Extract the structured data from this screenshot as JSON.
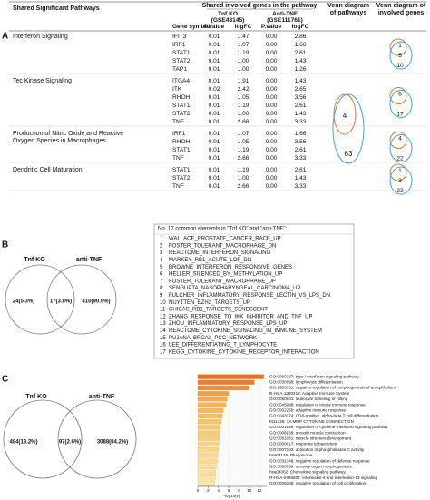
{
  "panel_labels": [
    "A",
    "B",
    "C"
  ],
  "table": {
    "title": "Shared Significant Pathways",
    "genes_header": "Shared involved genes in the pathway",
    "dataset_1": [
      "Tnf KO",
      "(GSE43145)"
    ],
    "dataset_2": [
      "Anti-TNF",
      "(GSE111761)"
    ],
    "venn_pathways_header": [
      "Venn diagram",
      "of pathways"
    ],
    "venn_genes_header": [
      "Venn diagram of",
      "involved genes"
    ],
    "columns": [
      "Gene symbol",
      "P.value",
      "logFC",
      "P.value",
      "logFC"
    ],
    "groups": [
      {
        "pathway": [
          "Interferon Signaling"
        ],
        "gene_venn": [
          "1",
          "5",
          "10"
        ],
        "rows": [
          [
            "IFIT3",
            "0.01",
            "1.47",
            "0.00",
            "2.86"
          ],
          [
            "IRF1",
            "0.01",
            "1.07",
            "0.00",
            "1.66"
          ],
          [
            "STAT1",
            "0.01",
            "1.19",
            "0.00",
            "2.61"
          ],
          [
            "STAT2",
            "0.01",
            "1.00",
            "0.00",
            "1.43"
          ],
          [
            "TAP1",
            "0.01",
            "1.00",
            "0.00",
            "1.26"
          ]
        ]
      },
      {
        "pathway": [
          "Tec Kinase Signaling"
        ],
        "gene_venn": [
          "6",
          "17"
        ],
        "rows": [
          [
            "ITGA4",
            "0.01",
            "1.91",
            "0.00",
            "1.43"
          ],
          [
            "ITK",
            "0.02",
            "2.42",
            "0.00",
            "2.65"
          ],
          [
            "RHOH",
            "0.01",
            "1.05",
            "0.00",
            "3.56"
          ],
          [
            "STAT1",
            "0.01",
            "1.19",
            "0.00",
            "2.61"
          ],
          [
            "STAT2",
            "0.01",
            "1.00",
            "0.00",
            "1.43"
          ],
          [
            "TNF",
            "0.01",
            "2.66",
            "0.00",
            "3.33"
          ]
        ]
      },
      {
        "pathway": [
          "Production of Nitric Oxide and Reactive",
          "Oxygen Species in Macrophages"
        ],
        "gene_venn": [
          "4",
          "22"
        ],
        "rows": [
          [
            "IRF1",
            "0.01",
            "1.07",
            "0.00",
            "1.66"
          ],
          [
            "RHOH",
            "0.01",
            "1.05",
            "0.00",
            "3.56"
          ],
          [
            "STAT1",
            "0.01",
            "1.19",
            "0.00",
            "2.61"
          ],
          [
            "TNF",
            "0.01",
            "2.66",
            "0.00",
            "3.33"
          ]
        ]
      },
      {
        "pathway": [
          "Dendritic Cell Maturation"
        ],
        "gene_venn": [
          "1",
          "3",
          "33"
        ],
        "rows": [
          [
            "STAT1",
            "0.01",
            "1.19",
            "0.00",
            "2.61"
          ],
          [
            "STAT2",
            "0.01",
            "1.00",
            "0.00",
            "1.43"
          ],
          [
            "TNF",
            "0.01",
            "2.66",
            "0.00",
            "3.33"
          ]
        ]
      }
    ],
    "pathway_venn": [
      "4",
      "63"
    ]
  },
  "venn_b": {
    "sets": [
      "Tnf KO",
      "anti-TNF"
    ],
    "regions": [
      "24(5.3%)",
      "17(3.8%)",
      "410(90.9%)"
    ]
  },
  "common_list": {
    "title": "No. 17 common elements  in \"Tnf KO\" and \"anti-TNF\":",
    "items": [
      [
        "1",
        "WALLACE_PROSTATE_CANCER_RACE_UP"
      ],
      [
        "2",
        "FOSTER_TOLERANT_MACROPHAGE_DN"
      ],
      [
        "3",
        "REACTOME_INTERFERON_SIGNALING"
      ],
      [
        "4",
        "MARKEY_RB1_ACUTE_LOF_DN"
      ],
      [
        "5",
        "BROWNE_INTERFERON_RESPONSIVE_GENES"
      ],
      [
        "6",
        "HELLER_SILENCED_BY_METHYLATION_UP"
      ],
      [
        "7",
        "FOSTER_TOLERANT_MACROPHAGE_UP"
      ],
      [
        "8",
        "SENGUPTA_NASOPHARYNGEAL_CARCINOMA_UP"
      ],
      [
        "9",
        "FULCHER_INFLAMMATORY_RESPONSE_LECTIN_VS_LPS_DN"
      ],
      [
        "10",
        "NUYTTEN_EZH2_TARGETS_UP"
      ],
      [
        "11",
        "CHICAS_RB1_TARGETS_SENESCENT"
      ],
      [
        "12",
        "ZHANG_RESPONSE_TO_IKK_INHIBITOR_AND_TNF_UP"
      ],
      [
        "13",
        "ZHOU_INFLAMMATORY_RESPONSE_LPS_UP"
      ],
      [
        "14",
        "REACTOME_CYTOKINE_SIGNALING_IN_IMMUNE_SYSTEM"
      ],
      [
        "15",
        "PUJANA_BRCA2_PCC_NETWORK"
      ],
      [
        "16",
        "LEE_DIFFERENTIATING_T_LYMPHOCYTE"
      ],
      [
        "17",
        "KEGG_CYTOKINE_CYTOKINE_RECEPTOR_INTERACTION"
      ]
    ]
  },
  "venn_c": {
    "sets": [
      "Tnf KO",
      "anti-TNF"
    ],
    "regions": [
      "484(13.2%)",
      "97(2.6%)",
      "3088(84.2%)"
    ]
  },
  "chart_data": {
    "type": "bar",
    "orientation": "horizontal",
    "xlabel": "-log10(P)",
    "categories": [
      "GO:0060337: type I interferon signaling pathway",
      "GO:0030098: lymphocyte differentiation",
      "GO:1905331: negative regulation of morphogenesis of an epithelium",
      "R-HSA-1280218: Adaptive Immune System",
      "GO:0050901: leukocyte tethering or rolling",
      "GO:0045088: regulation of innate immune response",
      "GO:0002250: adaptive immune response",
      "GO:0043374: CD8-positive, alpha-beta T cell differentiation",
      "M11736: 3A MMP CYTOKINE CONNECTION",
      "GO:0001959: regulation of cytokine-mediated signaling pathway",
      "GO:0006939: smooth muscle contraction",
      "GO:0061061: muscle structure development",
      "GO:0009617: response to bacterium",
      "GO:0007202: activation of phospholipase C activity",
      "hsa04145: Phagosome",
      "GO:0031348: negative regulation of defense response",
      "GO:0090596: sensory organ morphogenesis",
      "hsa04062: Chemokine signaling pathway",
      "R-HSA-6785807: Interleukin-4 and Interleukin-13 signaling",
      "GO:0008285: negative regulation of cell proliferation"
    ],
    "values": [
      12.8,
      11.0,
      10.0,
      6.0,
      5.7,
      5.5,
      5.0,
      4.8,
      4.6,
      4.4,
      4.3,
      4.2,
      4.1,
      4.0,
      3.9,
      3.8,
      3.6,
      3.5,
      3.4,
      3.3
    ],
    "colors": [
      "#e4702a",
      "#e97e33",
      "#ed8f3c",
      "#f09f48",
      "#f2ab52",
      "#f3b35a",
      "#f4b95f",
      "#f5be65",
      "#f6c36b",
      "#f6c770",
      "#f7cb76",
      "#f7cf7c",
      "#f8d282",
      "#f8d588",
      "#f9d88e",
      "#f9db94",
      "#fadd99",
      "#fae09f",
      "#fbe3a4",
      "#fbe6aa"
    ],
    "xlim": [
      0,
      13.4
    ],
    "xticks": [
      0,
      2,
      4,
      6,
      8,
      10,
      12
    ]
  }
}
